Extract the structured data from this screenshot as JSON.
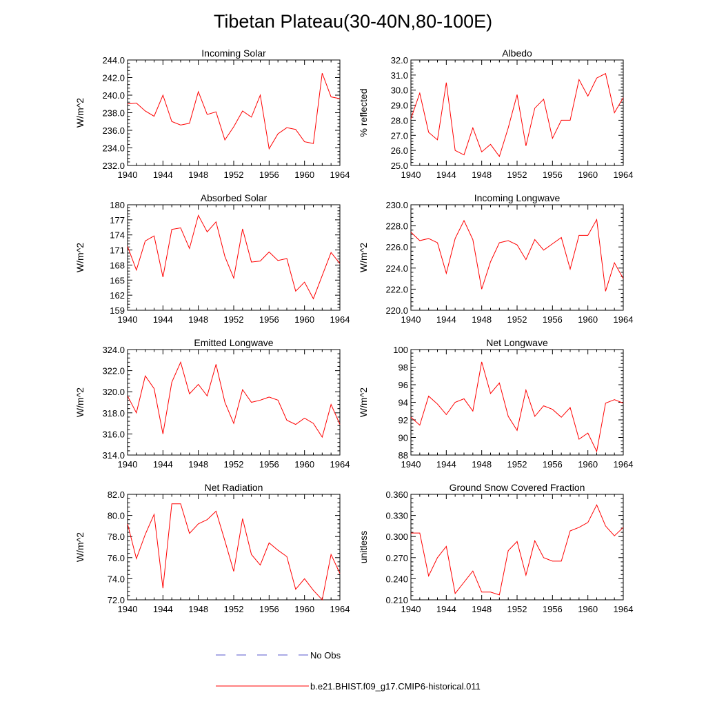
{
  "figure": {
    "title": "Tibetan Plateau(30-40N,80-100E)",
    "legend": [
      {
        "label": "No Obs",
        "color": "#5555cc",
        "style": "dashed"
      },
      {
        "label": "b.e21.BHIST.f09_g17.CMIP6-historical.011",
        "color": "#ff0000",
        "style": "solid"
      }
    ]
  },
  "chart_data": [
    {
      "type": "line",
      "title": "Incoming Solar",
      "ylabel": "W/m^2",
      "xlim": [
        1940,
        1964
      ],
      "ylim": [
        232.0,
        244.0
      ],
      "xticks": [
        "1940",
        "1944",
        "1948",
        "1952",
        "1956",
        "1960",
        "1964"
      ],
      "yticks": [
        "232.0",
        "234.0",
        "236.0",
        "238.0",
        "240.0",
        "242.0",
        "244.0"
      ],
      "x": [
        1940,
        1941,
        1942,
        1943,
        1944,
        1945,
        1946,
        1947,
        1948,
        1949,
        1950,
        1951,
        1952,
        1953,
        1954,
        1955,
        1956,
        1957,
        1958,
        1959,
        1960,
        1961,
        1962,
        1963,
        1964
      ],
      "series": [
        {
          "name": "b.e21.BHIST.f09_g17.CMIP6-historical.011",
          "color": "#ff0000",
          "values": [
            239.0,
            239.1,
            238.2,
            237.6,
            240.0,
            237.0,
            236.6,
            236.8,
            240.4,
            237.8,
            238.1,
            234.9,
            236.4,
            238.2,
            237.5,
            240.0,
            233.9,
            235.6,
            236.3,
            236.1,
            234.7,
            234.5,
            242.5,
            239.8,
            239.6
          ]
        }
      ]
    },
    {
      "type": "line",
      "title": "Albedo",
      "ylabel": "% reflected",
      "xlim": [
        1940,
        1964
      ],
      "ylim": [
        25.0,
        32.0
      ],
      "xticks": [
        "1940",
        "1944",
        "1948",
        "1952",
        "1956",
        "1960",
        "1964"
      ],
      "yticks": [
        "25.0",
        "26.0",
        "27.0",
        "28.0",
        "29.0",
        "30.0",
        "31.0",
        "32.0"
      ],
      "x": [
        1940,
        1941,
        1942,
        1943,
        1944,
        1945,
        1946,
        1947,
        1948,
        1949,
        1950,
        1951,
        1952,
        1953,
        1954,
        1955,
        1956,
        1957,
        1958,
        1959,
        1960,
        1961,
        1962,
        1963,
        1964
      ],
      "series": [
        {
          "name": "b.e21.BHIST.f09_g17.CMIP6-historical.011",
          "color": "#ff0000",
          "values": [
            28.1,
            29.8,
            27.2,
            26.7,
            30.5,
            26.0,
            25.7,
            27.5,
            25.9,
            26.4,
            25.6,
            27.5,
            29.7,
            26.3,
            28.8,
            29.4,
            26.8,
            28.0,
            28.0,
            30.7,
            29.6,
            30.8,
            31.1,
            28.5,
            29.5
          ]
        }
      ]
    },
    {
      "type": "line",
      "title": "Absorbed Solar",
      "ylabel": "W/m^2",
      "xlim": [
        1940,
        1964
      ],
      "ylim": [
        159,
        180
      ],
      "xticks": [
        "1940",
        "1944",
        "1948",
        "1952",
        "1956",
        "1960",
        "1964"
      ],
      "yticks": [
        "159",
        "162",
        "165",
        "168",
        "171",
        "174",
        "177",
        "180"
      ],
      "x": [
        1940,
        1941,
        1942,
        1943,
        1944,
        1945,
        1946,
        1947,
        1948,
        1949,
        1950,
        1951,
        1952,
        1953,
        1954,
        1955,
        1956,
        1957,
        1958,
        1959,
        1960,
        1961,
        1962,
        1963,
        1964
      ],
      "series": [
        {
          "name": "b.e21.BHIST.f09_g17.CMIP6-historical.011",
          "color": "#ff0000",
          "values": [
            171.7,
            167.0,
            172.8,
            173.8,
            165.6,
            175.1,
            175.4,
            171.3,
            177.9,
            174.6,
            176.6,
            169.7,
            165.4,
            175.2,
            168.6,
            168.8,
            170.6,
            168.9,
            169.3,
            162.8,
            164.6,
            161.3,
            165.9,
            170.5,
            168.3
          ]
        }
      ]
    },
    {
      "type": "line",
      "title": "Incoming Longwave",
      "ylabel": "W/m^2",
      "xlim": [
        1940,
        1964
      ],
      "ylim": [
        220.0,
        230.0
      ],
      "xticks": [
        "1940",
        "1944",
        "1948",
        "1952",
        "1956",
        "1960",
        "1964"
      ],
      "yticks": [
        "220.0",
        "222.0",
        "224.0",
        "226.0",
        "228.0",
        "230.0"
      ],
      "x": [
        1940,
        1941,
        1942,
        1943,
        1944,
        1945,
        1946,
        1947,
        1948,
        1949,
        1950,
        1951,
        1952,
        1953,
        1954,
        1955,
        1956,
        1957,
        1958,
        1959,
        1960,
        1961,
        1962,
        1963,
        1964
      ],
      "series": [
        {
          "name": "b.e21.BHIST.f09_g17.CMIP6-historical.011",
          "color": "#ff0000",
          "values": [
            227.4,
            226.6,
            226.8,
            226.4,
            223.5,
            226.8,
            228.5,
            226.7,
            222.0,
            224.6,
            226.4,
            226.6,
            226.2,
            224.8,
            226.7,
            225.7,
            226.3,
            226.9,
            223.9,
            227.1,
            227.1,
            228.6,
            221.8,
            224.5,
            223.0
          ]
        }
      ]
    },
    {
      "type": "line",
      "title": "Emitted Longwave",
      "ylabel": "W/m^2",
      "xlim": [
        1940,
        1964
      ],
      "ylim": [
        314.0,
        324.0
      ],
      "xticks": [
        "1940",
        "1944",
        "1948",
        "1952",
        "1956",
        "1960",
        "1964"
      ],
      "yticks": [
        "314.0",
        "316.0",
        "318.0",
        "320.0",
        "322.0",
        "324.0"
      ],
      "x": [
        1940,
        1941,
        1942,
        1943,
        1944,
        1945,
        1946,
        1947,
        1948,
        1949,
        1950,
        1951,
        1952,
        1953,
        1954,
        1955,
        1956,
        1957,
        1958,
        1959,
        1960,
        1961,
        1962,
        1963,
        1964
      ],
      "series": [
        {
          "name": "b.e21.BHIST.f09_g17.CMIP6-historical.011",
          "color": "#ff0000",
          "values": [
            319.6,
            318.0,
            321.5,
            320.3,
            316.0,
            320.9,
            322.8,
            319.8,
            320.7,
            319.6,
            322.6,
            319.0,
            317.0,
            320.2,
            319.0,
            319.2,
            319.5,
            319.2,
            317.3,
            316.9,
            317.5,
            317.0,
            315.7,
            318.8,
            316.9
          ]
        }
      ]
    },
    {
      "type": "line",
      "title": "Net Longwave",
      "ylabel": "W/m^2",
      "xlim": [
        1940,
        1964
      ],
      "ylim": [
        88,
        100
      ],
      "xticks": [
        "1940",
        "1944",
        "1948",
        "1952",
        "1956",
        "1960",
        "1964"
      ],
      "yticks": [
        "88",
        "90",
        "92",
        "94",
        "96",
        "98",
        "100"
      ],
      "x": [
        1940,
        1941,
        1942,
        1943,
        1944,
        1945,
        1946,
        1947,
        1948,
        1949,
        1950,
        1951,
        1952,
        1953,
        1954,
        1955,
        1956,
        1957,
        1958,
        1959,
        1960,
        1961,
        1962,
        1963,
        1964
      ],
      "series": [
        {
          "name": "b.e21.BHIST.f09_g17.CMIP6-historical.011",
          "color": "#ff0000",
          "values": [
            92.3,
            91.4,
            94.7,
            93.8,
            92.6,
            94.0,
            94.4,
            93.0,
            98.6,
            95.0,
            96.2,
            92.4,
            90.8,
            95.4,
            92.4,
            93.6,
            93.2,
            92.3,
            93.4,
            89.8,
            90.5,
            88.4,
            93.9,
            94.3,
            93.9
          ]
        }
      ]
    },
    {
      "type": "line",
      "title": "Net Radiation",
      "ylabel": "W/m^2",
      "xlim": [
        1940,
        1964
      ],
      "ylim": [
        72.0,
        82.0
      ],
      "xticks": [
        "1940",
        "1944",
        "1948",
        "1952",
        "1956",
        "1960",
        "1964"
      ],
      "yticks": [
        "72.0",
        "74.0",
        "76.0",
        "78.0",
        "80.0",
        "82.0"
      ],
      "x": [
        1940,
        1941,
        1942,
        1943,
        1944,
        1945,
        1946,
        1947,
        1948,
        1949,
        1950,
        1951,
        1952,
        1953,
        1954,
        1955,
        1956,
        1957,
        1958,
        1959,
        1960,
        1961,
        1962,
        1963,
        1964
      ],
      "series": [
        {
          "name": "b.e21.BHIST.f09_g17.CMIP6-historical.011",
          "color": "#ff0000",
          "values": [
            79.2,
            75.9,
            78.2,
            80.1,
            73.1,
            81.1,
            81.1,
            78.3,
            79.2,
            79.6,
            80.4,
            77.6,
            74.7,
            79.7,
            76.3,
            75.3,
            77.4,
            76.7,
            76.1,
            73.0,
            74.0,
            72.9,
            72.0,
            76.3,
            74.5
          ]
        }
      ]
    },
    {
      "type": "line",
      "title": "Ground Snow Covered Fraction",
      "ylabel": "unitless",
      "xlim": [
        1940,
        1964
      ],
      "ylim": [
        0.21,
        0.36
      ],
      "xticks": [
        "1940",
        "1944",
        "1948",
        "1952",
        "1956",
        "1960",
        "1964"
      ],
      "yticks": [
        "0.210",
        "0.240",
        "0.270",
        "0.300",
        "0.330",
        "0.360"
      ],
      "x": [
        1940,
        1941,
        1942,
        1943,
        1944,
        1945,
        1946,
        1947,
        1948,
        1949,
        1950,
        1951,
        1952,
        1953,
        1954,
        1955,
        1956,
        1957,
        1958,
        1959,
        1960,
        1961,
        1962,
        1963,
        1964
      ],
      "series": [
        {
          "name": "b.e21.BHIST.f09_g17.CMIP6-historical.011",
          "color": "#ff0000",
          "values": [
            0.305,
            0.305,
            0.244,
            0.27,
            0.286,
            0.219,
            0.235,
            0.251,
            0.221,
            0.221,
            0.217,
            0.28,
            0.293,
            0.245,
            0.294,
            0.27,
            0.265,
            0.265,
            0.308,
            0.313,
            0.32,
            0.345,
            0.315,
            0.301,
            0.313
          ]
        }
      ]
    }
  ]
}
